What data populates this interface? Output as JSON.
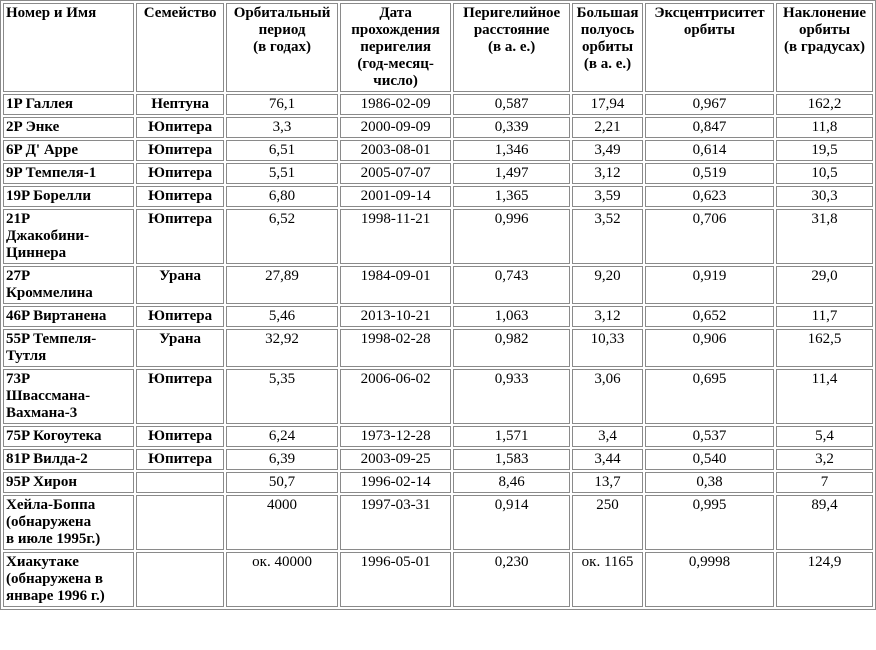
{
  "table": {
    "headers": [
      [
        "Номер и Имя"
      ],
      [
        "Семейство"
      ],
      [
        "Орбитальный",
        "период",
        "(в годах)"
      ],
      [
        "Дата",
        "прохождения",
        "перигелия",
        "(год-месяц-",
        "число)"
      ],
      [
        "Перигелийное",
        "расстояние",
        "(в а. е.)"
      ],
      [
        "Большая",
        "полуось",
        "орбиты",
        "(в а. е.)"
      ],
      [
        "Эксцентриситет",
        "орбиты"
      ],
      [
        "Наклонение",
        "орбиты",
        "(в градусах)"
      ]
    ],
    "rows": [
      {
        "name": [
          "1P Галлея"
        ],
        "family": "Нептуна",
        "period": "76,1",
        "date": "1986-02-09",
        "perihelion": "0,587",
        "semimajor": "17,94",
        "eccentricity": "0,967",
        "inclination": "162,2"
      },
      {
        "name": [
          "2P Энке"
        ],
        "family": "Юпитера",
        "period": "3,3",
        "date": "2000-09-09",
        "perihelion": "0,339",
        "semimajor": "2,21",
        "eccentricity": "0,847",
        "inclination": "11,8"
      },
      {
        "name": [
          "6P Д' Арре"
        ],
        "family": "Юпитера",
        "period": "6,51",
        "date": "2003-08-01",
        "perihelion": "1,346",
        "semimajor": "3,49",
        "eccentricity": "0,614",
        "inclination": "19,5"
      },
      {
        "name": [
          "9P Темпеля-1"
        ],
        "family": "Юпитера",
        "period": "5,51",
        "date": "2005-07-07",
        "perihelion": "1,497",
        "semimajor": "3,12",
        "eccentricity": "0,519",
        "inclination": "10,5"
      },
      {
        "name": [
          "19P Борелли"
        ],
        "family": "Юпитера",
        "period": "6,80",
        "date": "2001-09-14",
        "perihelion": "1,365",
        "semimajor": "3,59",
        "eccentricity": "0,623",
        "inclination": "30,3"
      },
      {
        "name": [
          "21P",
          "Джакобини-",
          "Циннера"
        ],
        "family": "Юпитера",
        "period": "6,52",
        "date": "1998-11-21",
        "perihelion": "0,996",
        "semimajor": "3,52",
        "eccentricity": "0,706",
        "inclination": "31,8"
      },
      {
        "name": [
          "27P",
          "Кроммелина"
        ],
        "family": "Урана",
        "period": "27,89",
        "date": "1984-09-01",
        "perihelion": "0,743",
        "semimajor": "9,20",
        "eccentricity": "0,919",
        "inclination": "29,0"
      },
      {
        "name": [
          "46P Виртанена"
        ],
        "family": "Юпитера",
        "period": "5,46",
        "date": "2013-10-21",
        "perihelion": "1,063",
        "semimajor": "3,12",
        "eccentricity": "0,652",
        "inclination": "11,7"
      },
      {
        "name": [
          "55P Темпеля-",
          "Тутля"
        ],
        "family": "Урана",
        "period": "32,92",
        "date": "1998-02-28",
        "perihelion": "0,982",
        "semimajor": "10,33",
        "eccentricity": "0,906",
        "inclination": "162,5"
      },
      {
        "name": [
          "73P",
          "Швассмана-",
          "Вахмана-3"
        ],
        "family": "Юпитера",
        "period": "5,35",
        "date": "2006-06-02",
        "perihelion": "0,933",
        "semimajor": "3,06",
        "eccentricity": "0,695",
        "inclination": "11,4"
      },
      {
        "name": [
          "75P Когоутека"
        ],
        "family": "Юпитера",
        "period": "6,24",
        "date": "1973-12-28",
        "perihelion": "1,571",
        "semimajor": "3,4",
        "eccentricity": "0,537",
        "inclination": "5,4"
      },
      {
        "name": [
          "81P Вилда-2"
        ],
        "family": "Юпитера",
        "period": "6,39",
        "date": "2003-09-25",
        "perihelion": "1,583",
        "semimajor": "3,44",
        "eccentricity": "0,540",
        "inclination": "3,2"
      },
      {
        "name": [
          "95P Хирон"
        ],
        "family": "",
        "period": "50,7",
        "date": "1996-02-14",
        "perihelion": "8,46",
        "semimajor": "13,7",
        "eccentricity": "0,38",
        "inclination": "7"
      },
      {
        "name": [
          "Хейла-Боппа",
          "(обнаружена",
          "в июле 1995г.)"
        ],
        "family": "",
        "period": "4000",
        "date": "1997-03-31",
        "perihelion": "0,914",
        "semimajor": "250",
        "eccentricity": "0,995",
        "inclination": "89,4"
      },
      {
        "name": [
          "Хиакутаке",
          "(обнаружена в",
          "январе 1996 г.)"
        ],
        "family": "",
        "period": "ок. 40000",
        "date": "1996-05-01",
        "perihelion": "0,230",
        "semimajor": "ок. 1165",
        "eccentricity": "0,9998",
        "inclination": "124,9"
      }
    ]
  }
}
